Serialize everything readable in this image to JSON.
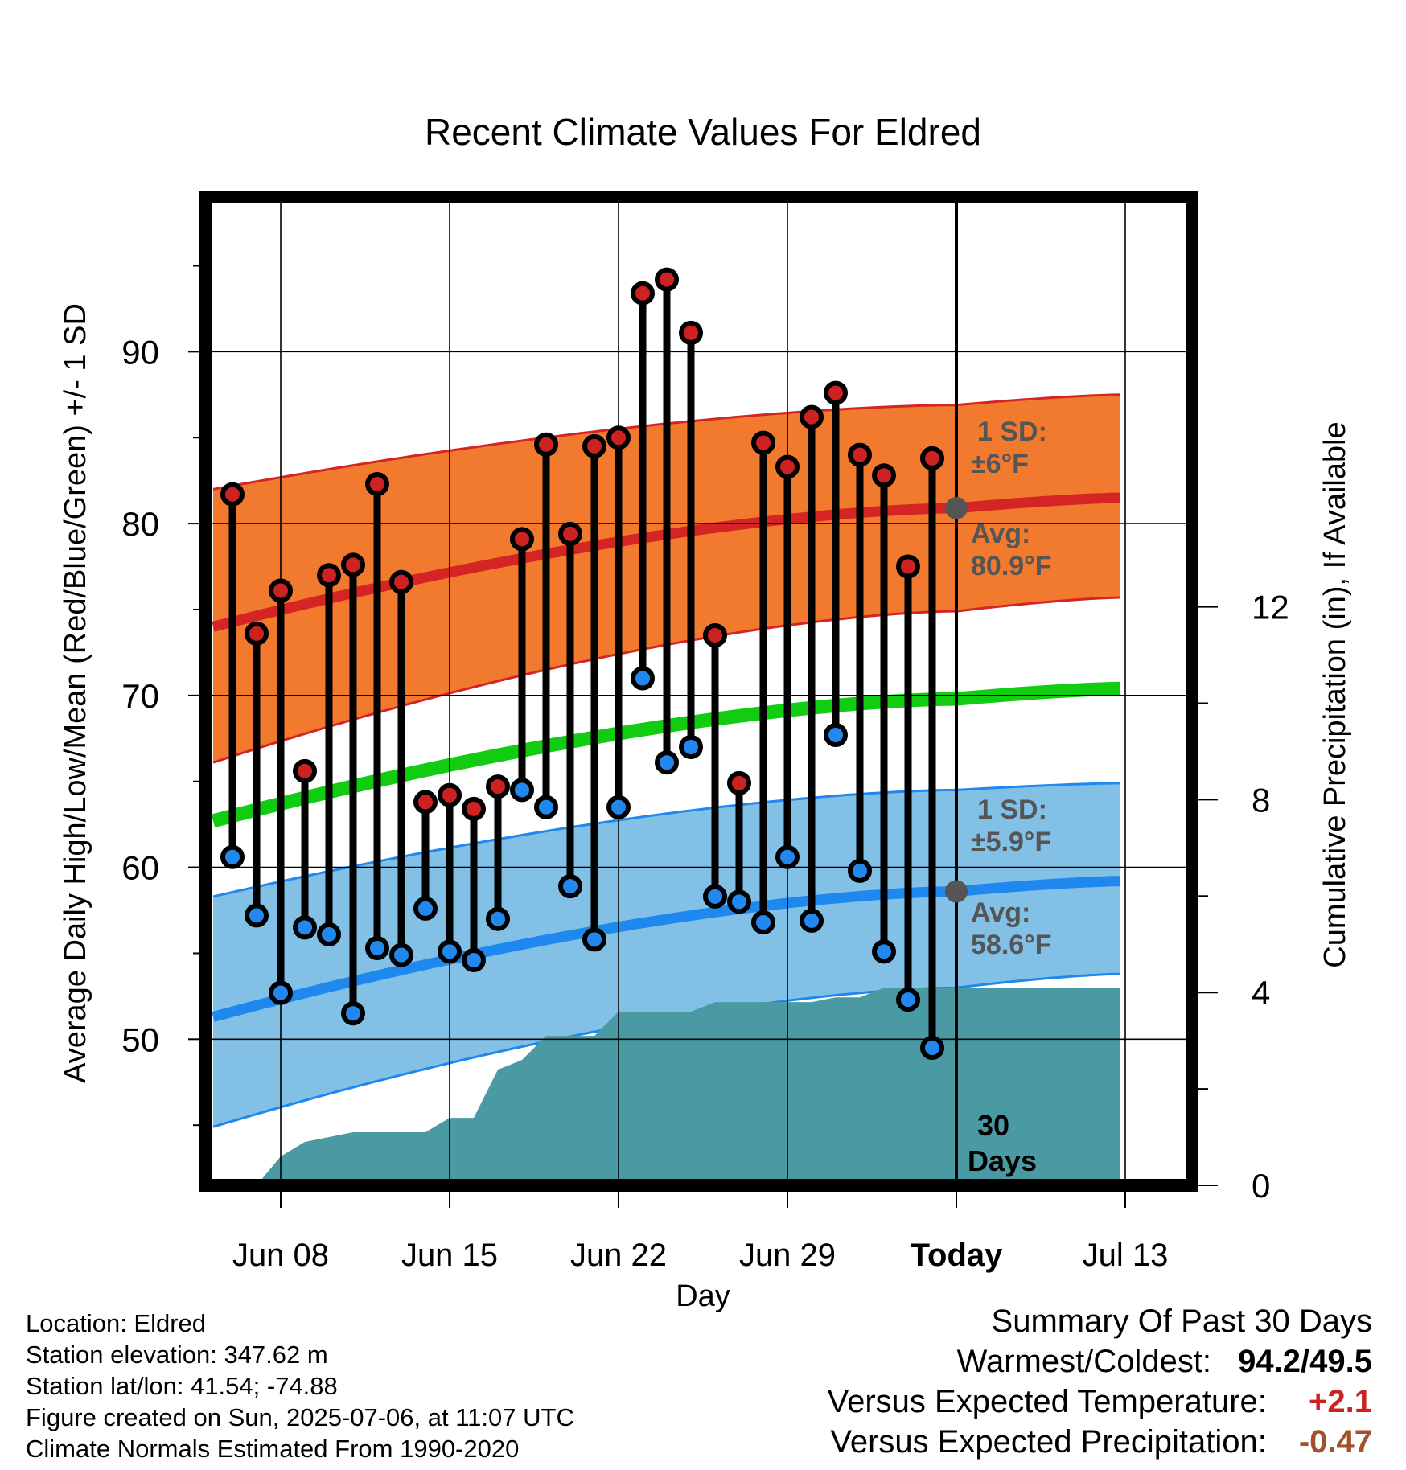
{
  "chart_data": {
    "type": "line",
    "title": "Recent Climate Values For Eldred",
    "xlabel": "Day",
    "ylabel": "Average Daily High/Low/Mean (Red/Blue/Green) +/- 1 SD",
    "y2label": "Cumulative Precipitation (in), If Available",
    "x_tick_labels": [
      "Jun 08",
      "Jun 15",
      "Jun 22",
      "Jun 29",
      "Today",
      "Jul 13"
    ],
    "ylim": [
      41.5,
      99.0
    ],
    "y_ticks": [
      50,
      60,
      70,
      80,
      90
    ],
    "y2lim": [
      0,
      20.5
    ],
    "y2_ticks": [
      0,
      4,
      8,
      12
    ],
    "grid": true,
    "today_label": "Today",
    "window_label": [
      "30",
      "Days"
    ],
    "normals": {
      "high_mean": {
        "start": 74.0,
        "today": 80.9,
        "end": 81.5
      },
      "high_upper": {
        "start": 82.0,
        "today": 86.9,
        "end": 87.5
      },
      "high_lower": {
        "start": 66.1,
        "today": 74.9,
        "end": 75.7
      },
      "daily_mean": {
        "start": 62.7,
        "today": 69.8,
        "end": 70.4
      },
      "low_mean": {
        "start": 51.3,
        "today": 58.6,
        "end": 59.2
      },
      "low_upper": {
        "start": 58.3,
        "today": 64.5,
        "end": 64.9
      },
      "low_lower": {
        "start": 44.9,
        "today": 53.0,
        "end": 53.8
      }
    },
    "annotations": {
      "high_sd": [
        "1 SD:",
        "±6°F"
      ],
      "high_avg": [
        "Avg:",
        "80.9°F"
      ],
      "low_sd": [
        "1 SD:",
        "±5.9°F"
      ],
      "low_avg": [
        "Avg:",
        "58.6°F"
      ]
    },
    "series": [
      {
        "name": "Daily High",
        "color": "#cc2222",
        "values": [
          81.7,
          73.6,
          76.1,
          65.6,
          77.0,
          77.6,
          82.3,
          76.6,
          63.8,
          64.2,
          63.4,
          64.7,
          79.1,
          84.6,
          79.4,
          84.5,
          85.0,
          93.4,
          94.2,
          91.1,
          73.5,
          64.9,
          84.7,
          83.3,
          86.2,
          87.6,
          84.0,
          82.8,
          77.5,
          83.8
        ]
      },
      {
        "name": "Daily Low",
        "color": "#2288ee",
        "values": [
          60.6,
          57.2,
          52.7,
          56.5,
          56.1,
          51.5,
          55.3,
          54.9,
          57.6,
          55.1,
          54.6,
          57.0,
          64.5,
          63.5,
          58.9,
          55.8,
          63.5,
          71.0,
          66.1,
          67.0,
          58.3,
          58.0,
          56.8,
          60.6,
          56.9,
          67.7,
          59.8,
          55.1,
          52.3,
          49.5
        ]
      }
    ],
    "precipitation_cumulative": [
      0.0,
      0.0,
      0.6,
      0.9,
      1.0,
      1.1,
      1.1,
      1.1,
      1.1,
      1.4,
      1.4,
      2.4,
      2.6,
      3.1,
      3.1,
      3.1,
      3.6,
      3.6,
      3.6,
      3.6,
      3.8,
      3.8,
      3.8,
      3.8,
      3.8,
      3.9,
      3.9,
      4.1,
      4.1,
      4.1,
      4.1
    ],
    "precip_colors": {
      "fill": "#4a9aa4"
    },
    "band_colors": {
      "high": "#f27a2e",
      "high_line": "#d42424",
      "low": "#82c0e6",
      "low_line": "#1e88ee",
      "mean": "#11cc11"
    }
  },
  "footer": {
    "location": "Location: Eldred",
    "elevation": "Station elevation: 347.62 m",
    "latlon": "Station lat/lon: 41.54; -74.88",
    "created": "Figure created on Sun, 2025-07-06, at 11:07 UTC",
    "normals": "Climate Normals Estimated From 1990-2020"
  },
  "summary": {
    "title": "Summary Of Past 30 Days",
    "warmest_label": "Warmest/Coldest:",
    "warmest_value": "94.2/49.5",
    "temp_label": "Versus Expected Temperature:",
    "temp_value": "+2.1",
    "temp_color": "#cc2222",
    "precip_label": "Versus Expected Precipitation:",
    "precip_value": "-0.47",
    "precip_color": "#a0522d"
  }
}
